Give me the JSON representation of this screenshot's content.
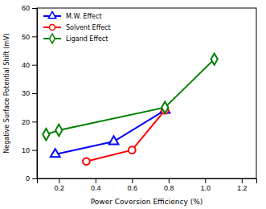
{
  "chart_data": {
    "type": "line",
    "xlabel": "Power Coversion Efficiency (%)",
    "ylabel": "Negative Surface Potential Shift (mV)",
    "series": [
      {
        "name": "M.W. Effect",
        "color": "#0000FF",
        "marker": "triangle",
        "x": [
          0.18,
          0.5,
          0.78
        ],
        "values": [
          8.5,
          13.0,
          24.0
        ]
      },
      {
        "name": "Solvent Effect",
        "color": "#FF0000",
        "marker": "circle",
        "x": [
          0.35,
          0.6,
          0.78
        ],
        "values": [
          6.0,
          10.0,
          24.0
        ]
      },
      {
        "name": "Ligand Effect",
        "color": "#008000",
        "marker": "diamond",
        "x": [
          0.13,
          0.2,
          0.78,
          1.05
        ],
        "values": [
          15.5,
          17.0,
          25.0,
          42.0
        ]
      }
    ],
    "xlim": [
      0.08,
      1.28
    ],
    "ylim": [
      0,
      60
    ],
    "xticks": [
      0.2,
      0.4,
      0.6,
      0.8,
      {
        "value": 1.0,
        "label": "1.0"
      },
      1.2
    ],
    "yticks": [
      0,
      10,
      20,
      30,
      40,
      50,
      60
    ],
    "legend": "upper left"
  }
}
